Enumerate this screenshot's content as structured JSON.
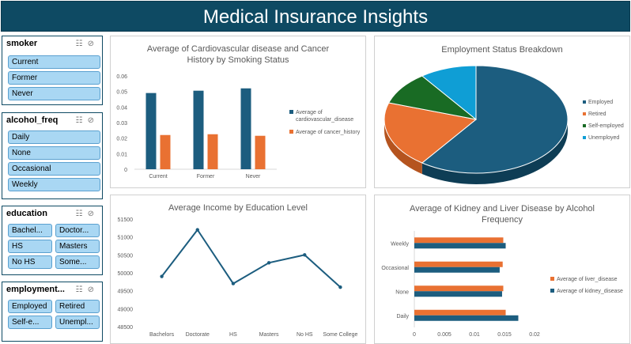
{
  "dashboard": {
    "title": "Medical Insurance Insights"
  },
  "slicers": [
    {
      "title": "smoker",
      "items": [
        "Current",
        "Former",
        "Never"
      ]
    },
    {
      "title": "alcohol_freq",
      "items": [
        "Daily",
        "None",
        "Occasional",
        "Weekly"
      ]
    },
    {
      "title": "education",
      "items": [
        "Bachel...",
        "Doctor...",
        "HS",
        "Masters",
        "No HS",
        "Some..."
      ]
    },
    {
      "title": "employment...",
      "items": [
        "Employed",
        "Retired",
        "Self-e...",
        "Unempl..."
      ]
    }
  ],
  "colors": {
    "banner": "#0e4a63",
    "navy": "#1c5d7f",
    "orange": "#e97132",
    "green": "#196b24",
    "cyan": "#0f9ed5",
    "chip": "#a9d7f3"
  },
  "chart_data": [
    {
      "id": "cardio_cancer",
      "type": "bar",
      "title": "Average of Cardiovascular disease and Cancer History by Smoking Status",
      "title_lines": [
        "Average of Cardiovascular disease and Cancer",
        "History by Smoking Status"
      ],
      "categories": [
        "Current",
        "Former",
        "Never"
      ],
      "series": [
        {
          "name": "Average of cardiovascular_disease",
          "legend_lines": [
            "Average of",
            "cardiovascular_disease"
          ],
          "values": [
            0.049,
            0.0505,
            0.052
          ]
        },
        {
          "name": "Average of cancer_history",
          "legend_lines": [
            "Average of cancer_history"
          ],
          "values": [
            0.022,
            0.0225,
            0.0215
          ]
        }
      ],
      "ylim": [
        0,
        0.06
      ],
      "yticks": [
        "0",
        "0.01",
        "0.02",
        "0.03",
        "0.04",
        "0.05",
        "0.06"
      ],
      "legend": "right"
    },
    {
      "id": "employment",
      "type": "pie",
      "title": "Employment Status Breakdown",
      "categories": [
        "Employed",
        "Retired",
        "Self-employed",
        "Unemployed"
      ],
      "values": [
        60,
        20,
        10,
        10
      ],
      "legend": "right"
    },
    {
      "id": "income",
      "type": "line",
      "title": "Average Income by Education Level",
      "categories": [
        "Bachelors",
        "Doctorate",
        "HS",
        "Masters",
        "No HS",
        "Some College"
      ],
      "values": [
        49900,
        51200,
        49700,
        50280,
        50500,
        49600
      ],
      "ylim": [
        48500,
        51500
      ],
      "yticks": [
        "48500",
        "49000",
        "49500",
        "50000",
        "50500",
        "51000",
        "51500"
      ],
      "legend": "none"
    },
    {
      "id": "kidney_liver",
      "type": "bar",
      "orientation": "horizontal",
      "title": "Average of Kidney and Liver Disease by Alcohol Frequency",
      "title_lines": [
        "Average of Kidney and Liver Disease by Alcohol",
        "Frequency"
      ],
      "categories": [
        "Daily",
        "None",
        "Occasional",
        "Weekly"
      ],
      "series": [
        {
          "name": "Average of liver_disease",
          "values": [
            0.0152,
            0.0148,
            0.0147,
            0.0148
          ]
        },
        {
          "name": "Average of kidney_disease",
          "values": [
            0.0173,
            0.0146,
            0.0142,
            0.0152
          ]
        }
      ],
      "xlim": [
        0,
        0.02
      ],
      "xticks": [
        "0",
        "0.005",
        "0.01",
        "0.015",
        "0.02"
      ],
      "legend": "right"
    }
  ]
}
